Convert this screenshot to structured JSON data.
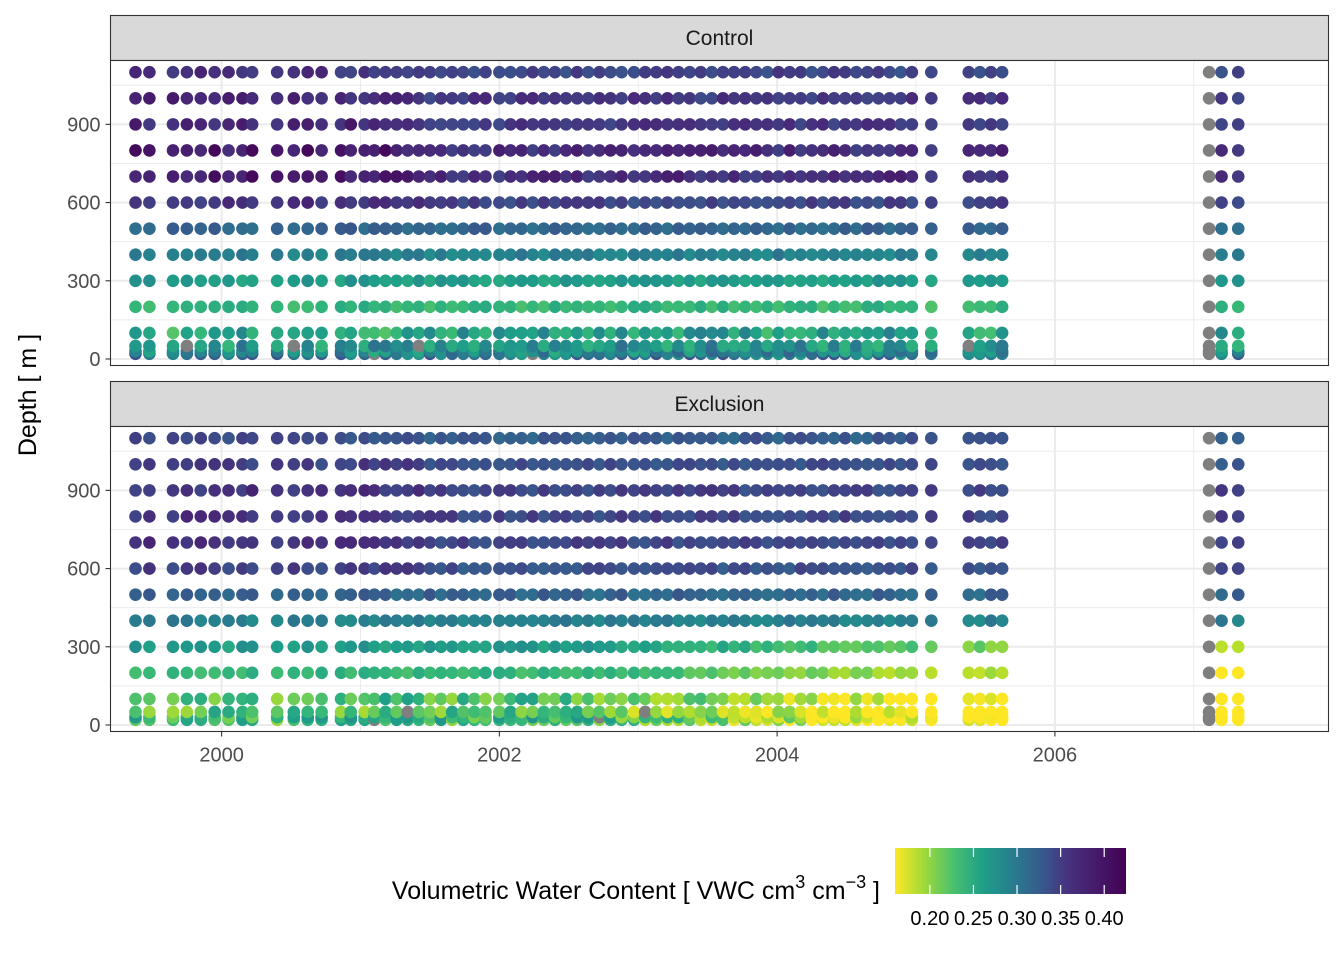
{
  "chart_data": {
    "type": "scatter",
    "facets": [
      "Control",
      "Exclusion"
    ],
    "ylabel": "Depth [ m ]",
    "xlabel": "",
    "x_ticks": [
      2000,
      2002,
      2004,
      2006
    ],
    "x_tick_labels": [
      "2000",
      "2002",
      "2004",
      "2006"
    ],
    "xlim": [
      1999.2,
      2007.97
    ],
    "y_ticks": [
      0,
      300,
      600,
      900
    ],
    "y_tick_labels": [
      "0",
      "300",
      "600",
      "900"
    ],
    "ylim": [
      -25,
      1145
    ],
    "depths": [
      20,
      30,
      50,
      100,
      200,
      300,
      400,
      500,
      600,
      700,
      800,
      900,
      1000,
      1100
    ],
    "legend": {
      "position": "bottom",
      "title": "Volumetric Water Content [ VWC cm",
      "title_sup1": "3",
      "title_mid": " cm",
      "title_sup2": "−3",
      "title_end": " ]",
      "min": 0.16,
      "max": 0.425,
      "breaks": [
        0.2,
        0.25,
        0.3,
        0.35,
        0.4
      ],
      "break_labels": [
        "0.20",
        "0.25",
        "0.30",
        "0.35",
        "0.40"
      ],
      "palette": "viridis-reversed",
      "na_color": "#7f7f7f"
    },
    "sampling_dates": [
      1999.38,
      1999.48,
      1999.65,
      1999.75,
      1999.85,
      1999.95,
      2000.05,
      2000.15,
      2000.22,
      2000.4,
      2000.52,
      2000.62,
      2000.72,
      2000.86,
      2000.93,
      2001.03,
      2001.1,
      2001.18,
      2001.26,
      2001.34,
      2001.42,
      2001.5,
      2001.58,
      2001.66,
      2001.74,
      2001.82,
      2001.9,
      2002.0,
      2002.08,
      2002.16,
      2002.24,
      2002.32,
      2002.4,
      2002.48,
      2002.56,
      2002.64,
      2002.72,
      2002.8,
      2002.88,
      2002.97,
      2003.05,
      2003.13,
      2003.21,
      2003.29,
      2003.37,
      2003.45,
      2003.53,
      2003.61,
      2003.69,
      2003.77,
      2003.85,
      2003.93,
      2004.01,
      2004.09,
      2004.17,
      2004.25,
      2004.33,
      2004.41,
      2004.49,
      2004.57,
      2004.65,
      2004.73,
      2004.81,
      2004.89,
      2004.97,
      2005.11,
      2005.38,
      2005.46,
      2005.54,
      2005.62,
      2007.11,
      2007.2,
      2007.32
    ],
    "series": [
      {
        "name": "Control",
        "vwc_by_depth": {
          "20": 0.32,
          "30": 0.3,
          "50": 0.29,
          "100": 0.27,
          "200": 0.25,
          "300": 0.28,
          "400": 0.31,
          "500": 0.34,
          "600": 0.37,
          "700": 0.39,
          "800": 0.39,
          "900": 0.38,
          "1000": 0.38,
          "1100": 0.37
        },
        "notes": "wettest at 700-1100 cm (dark purple), driest near 200 cm (yellow-green), surface points mixed"
      },
      {
        "name": "Exclusion",
        "vwc_by_depth": {
          "20": 0.24,
          "30": 0.25,
          "50": 0.23,
          "100": 0.24,
          "200": 0.25,
          "300": 0.28,
          "400": 0.31,
          "500": 0.34,
          "600": 0.36,
          "700": 0.37,
          "800": 0.37,
          "900": 0.37,
          "1000": 0.36,
          "1100": 0.35
        },
        "notes": "drier than control at shallow depths after 2003 (yellow near surface)"
      }
    ]
  }
}
